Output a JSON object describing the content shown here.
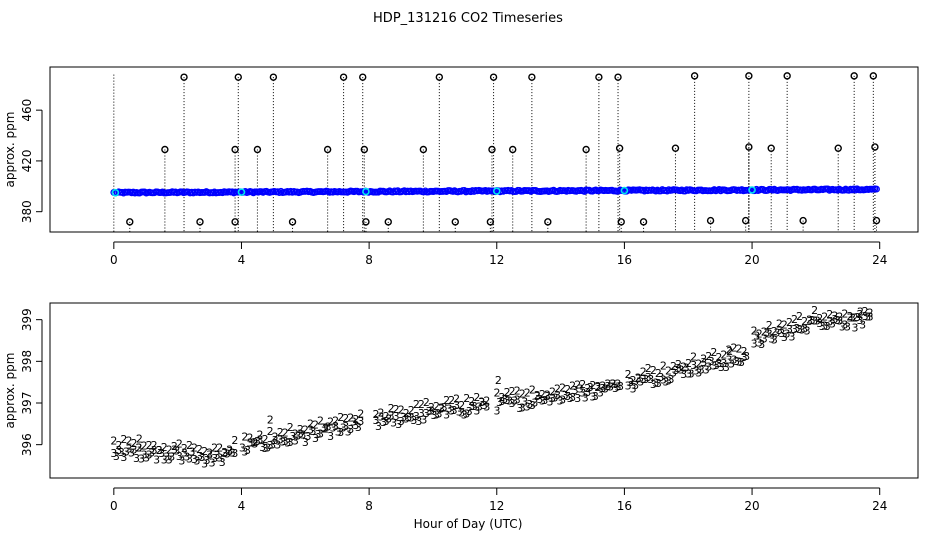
{
  "chart_data": {
    "title": "HDP_131216  CO2 Timeseries",
    "xlabel": "Hour of Day (UTC)",
    "xlim": [
      -2.0,
      25.2
    ],
    "xticks": [
      0,
      4,
      8,
      12,
      16,
      20,
      24
    ],
    "colors": {
      "primary": "#0000ff",
      "secondary": "#00cc00",
      "flag": "#00e5ee",
      "outlier": "#000000"
    },
    "panels": [
      {
        "type": "scatter",
        "ylabel": "approx. ppm",
        "ylim": [
          364,
          494
        ],
        "yticks": [
          380,
          420,
          460
        ],
        "baseline": {
          "start": 395.0,
          "end": 397.5,
          "x0": 0.0,
          "x1": 23.9
        },
        "flag_points": [
          0.05,
          4.0,
          7.9,
          12.0,
          16.0,
          20.0
        ],
        "outliers_high": [
          [
            2.2,
            486
          ],
          [
            3.9,
            486
          ],
          [
            5.0,
            486
          ],
          [
            7.2,
            486
          ],
          [
            7.8,
            486
          ],
          [
            10.2,
            486
          ],
          [
            11.9,
            486
          ],
          [
            13.1,
            486
          ],
          [
            15.2,
            486
          ],
          [
            15.8,
            486
          ],
          [
            18.2,
            487
          ],
          [
            19.9,
            487
          ],
          [
            21.1,
            487
          ],
          [
            23.2,
            487
          ],
          [
            23.8,
            487
          ]
        ],
        "outliers_mid": [
          [
            1.6,
            429
          ],
          [
            3.8,
            429
          ],
          [
            4.5,
            429
          ],
          [
            6.7,
            429
          ],
          [
            7.85,
            429
          ],
          [
            9.7,
            429
          ],
          [
            11.85,
            429
          ],
          [
            12.5,
            429
          ],
          [
            14.8,
            429
          ],
          [
            15.85,
            430
          ],
          [
            17.6,
            430
          ],
          [
            19.9,
            431
          ],
          [
            20.6,
            430
          ],
          [
            22.7,
            430
          ],
          [
            23.85,
            431
          ]
        ],
        "outliers_low": [
          [
            0.5,
            372
          ],
          [
            2.7,
            372
          ],
          [
            3.8,
            372
          ],
          [
            5.6,
            372
          ],
          [
            7.9,
            372
          ],
          [
            8.6,
            372
          ],
          [
            10.7,
            372
          ],
          [
            11.8,
            372
          ],
          [
            13.6,
            372
          ],
          [
            15.9,
            372
          ],
          [
            16.6,
            372
          ],
          [
            18.7,
            373
          ],
          [
            19.8,
            373
          ],
          [
            21.6,
            373
          ],
          [
            23.9,
            373
          ]
        ]
      },
      {
        "type": "scatter",
        "ylabel": "approx. ppm",
        "ylim": [
          395.2,
          399.4
        ],
        "yticks": [
          396,
          397,
          398,
          399
        ],
        "series": [
          {
            "name": "3",
            "marker_text": "3",
            "color": "#0000ff"
          },
          {
            "name": "2",
            "marker_text": "2",
            "color": "#00cc00"
          }
        ],
        "trend_knots": [
          [
            0.0,
            395.85
          ],
          [
            2.0,
            395.75
          ],
          [
            3.3,
            395.65
          ],
          [
            4.0,
            395.9
          ],
          [
            6.0,
            396.2
          ],
          [
            8.0,
            396.5
          ],
          [
            10.0,
            396.75
          ],
          [
            12.0,
            396.95
          ],
          [
            14.0,
            397.15
          ],
          [
            16.0,
            397.4
          ],
          [
            18.0,
            397.8
          ],
          [
            19.9,
            398.1
          ],
          [
            20.0,
            398.5
          ],
          [
            21.0,
            398.65
          ],
          [
            22.0,
            398.95
          ],
          [
            23.7,
            398.95
          ]
        ],
        "gaps": [
          [
            3.85,
            4.0
          ],
          [
            7.75,
            8.15
          ],
          [
            11.7,
            12.0
          ],
          [
            15.95,
            16.1
          ],
          [
            19.85,
            20.05
          ]
        ],
        "green_offset": 0.2,
        "highlights": [
          [
            0.8,
            396.15
          ],
          [
            4.9,
            396.6
          ],
          [
            12.05,
            397.55
          ],
          [
            19.3,
            398.25
          ],
          [
            23.4,
            399.2
          ]
        ]
      }
    ]
  }
}
